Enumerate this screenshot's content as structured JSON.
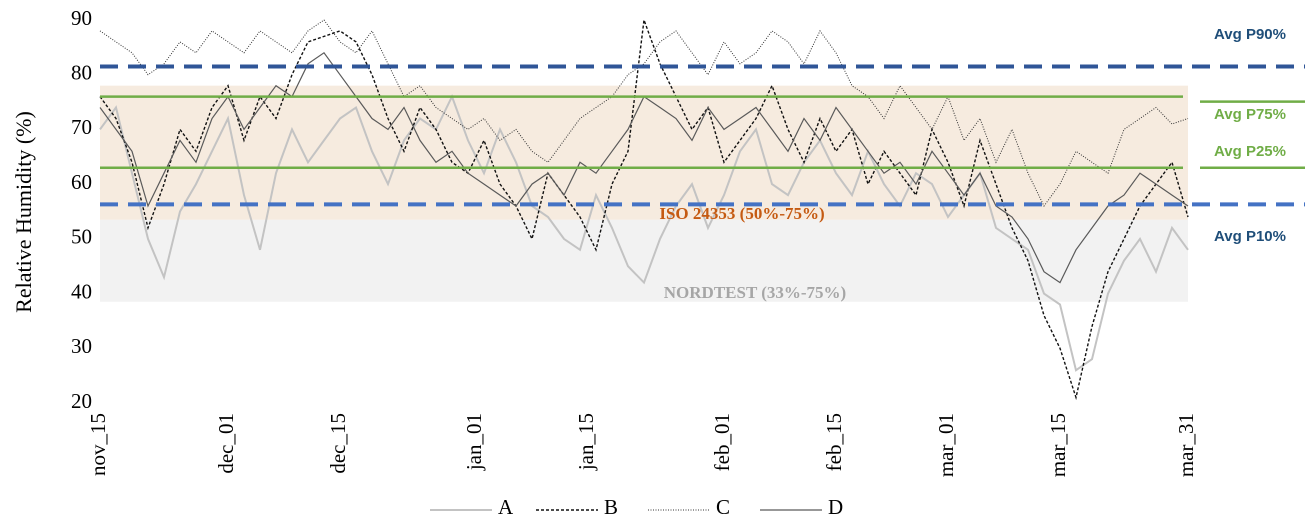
{
  "chart_data": {
    "type": "line",
    "y_label": "Relative Humidity (%)",
    "ylim": [
      20,
      90
    ],
    "yticks": [
      20,
      30,
      40,
      50,
      60,
      70,
      80,
      90
    ],
    "xlim": [
      0,
      136
    ],
    "xticks": [
      {
        "value": 0,
        "label": "nov_15"
      },
      {
        "value": 16,
        "label": "dec_01"
      },
      {
        "value": 30,
        "label": "dec_15"
      },
      {
        "value": 47,
        "label": "jan_01"
      },
      {
        "value": 61,
        "label": "jan_15"
      },
      {
        "value": 78,
        "label": "feb_01"
      },
      {
        "value": 92,
        "label": "feb_15"
      },
      {
        "value": 106,
        "label": "mar_01"
      },
      {
        "value": 120,
        "label": "mar_15"
      },
      {
        "value": 136,
        "label": "mar_31"
      }
    ],
    "x": [
      0,
      2,
      4,
      6,
      8,
      10,
      12,
      14,
      16,
      18,
      20,
      22,
      24,
      26,
      28,
      30,
      32,
      34,
      36,
      38,
      40,
      42,
      44,
      46,
      48,
      50,
      52,
      54,
      56,
      58,
      60,
      62,
      64,
      66,
      68,
      70,
      72,
      74,
      76,
      78,
      80,
      82,
      84,
      86,
      88,
      90,
      92,
      94,
      96,
      98,
      100,
      102,
      104,
      106,
      108,
      110,
      112,
      114,
      116,
      118,
      120,
      122,
      124,
      126,
      128,
      130,
      132,
      134,
      136
    ],
    "series": [
      {
        "name": "A",
        "color": "#c3c3c3",
        "dash": "none",
        "width": 2,
        "values": [
          70,
          74,
          62,
          50,
          43,
          55,
          60,
          66,
          72,
          58,
          48,
          62,
          70,
          64,
          68,
          72,
          74,
          66,
          60,
          68,
          72,
          70,
          76,
          68,
          62,
          70,
          64,
          56,
          54,
          50,
          48,
          58,
          52,
          45,
          42,
          50,
          56,
          60,
          52,
          58,
          66,
          70,
          60,
          58,
          64,
          68,
          62,
          58,
          66,
          60,
          56,
          62,
          60,
          54,
          58,
          62,
          52,
          50,
          48,
          40,
          38,
          26,
          28,
          40,
          46,
          50,
          44,
          52,
          48
        ]
      },
      {
        "name": "B",
        "color": "#111111",
        "dash": "3 2",
        "width": 1.4,
        "values": [
          76,
          72,
          64,
          52,
          60,
          70,
          66,
          74,
          78,
          68,
          76,
          72,
          80,
          86,
          87,
          88,
          86,
          80,
          72,
          66,
          74,
          70,
          64,
          62,
          68,
          60,
          56,
          50,
          62,
          58,
          54,
          48,
          60,
          66,
          90,
          82,
          76,
          70,
          74,
          64,
          68,
          72,
          78,
          70,
          64,
          72,
          66,
          70,
          60,
          66,
          62,
          58,
          70,
          64,
          56,
          68,
          60,
          52,
          46,
          36,
          30,
          21,
          34,
          44,
          50,
          56,
          60,
          64,
          54
        ]
      },
      {
        "name": "C",
        "color": "#333333",
        "dash": "1 1.5",
        "width": 1,
        "values": [
          88,
          86,
          84,
          80,
          82,
          86,
          84,
          88,
          86,
          84,
          88,
          86,
          84,
          88,
          90,
          86,
          84,
          88,
          82,
          76,
          78,
          74,
          72,
          70,
          72,
          68,
          70,
          66,
          64,
          68,
          72,
          74,
          76,
          80,
          82,
          86,
          88,
          84,
          80,
          86,
          82,
          84,
          88,
          86,
          82,
          88,
          84,
          78,
          76,
          72,
          78,
          74,
          70,
          76,
          68,
          72,
          64,
          70,
          62,
          56,
          60,
          66,
          64,
          62,
          70,
          72,
          74,
          71,
          72
        ]
      },
      {
        "name": "D",
        "color": "#5a5a5a",
        "dash": "none",
        "width": 1.2,
        "values": [
          74,
          70,
          66,
          56,
          62,
          68,
          64,
          72,
          76,
          70,
          74,
          78,
          76,
          82,
          84,
          80,
          76,
          72,
          70,
          74,
          68,
          64,
          66,
          62,
          60,
          58,
          56,
          60,
          62,
          58,
          64,
          62,
          66,
          70,
          76,
          74,
          72,
          68,
          74,
          70,
          72,
          74,
          70,
          66,
          72,
          68,
          74,
          70,
          66,
          62,
          64,
          60,
          66,
          62,
          58,
          62,
          56,
          54,
          50,
          44,
          42,
          48,
          52,
          56,
          58,
          62,
          60,
          58,
          56
        ]
      }
    ],
    "bands": [
      {
        "label": "NORDTEST (33%-75%)",
        "low": 38.5,
        "high": 53.5,
        "color": "#f2f2f2",
        "text_color": "#a6a6a6"
      },
      {
        "label": "ISO 24353 (50%-75%)",
        "low": 53.5,
        "high": 78,
        "color": "#f6ebdf",
        "text_color": "#c55a11"
      }
    ],
    "reference_lines": [
      {
        "label": "Avg P90%",
        "value": 81.5,
        "color": "#2f5597",
        "label_color": "#1f4e79",
        "dash": "18 10",
        "width": 4
      },
      {
        "label": "Avg P75%",
        "value": 76,
        "color": "#70ad47",
        "label_color": "#70ad47",
        "dash": "none",
        "width": 2.5
      },
      {
        "label": "Avg P25%",
        "value": 63,
        "color": "#70ad47",
        "label_color": "#70ad47",
        "dash": "none",
        "width": 2.5
      },
      {
        "label": "Avg P10%",
        "value": 56.3,
        "color": "#4472c4",
        "label_color": "#1f4e79",
        "dash": "18 10",
        "width": 4
      }
    ]
  }
}
